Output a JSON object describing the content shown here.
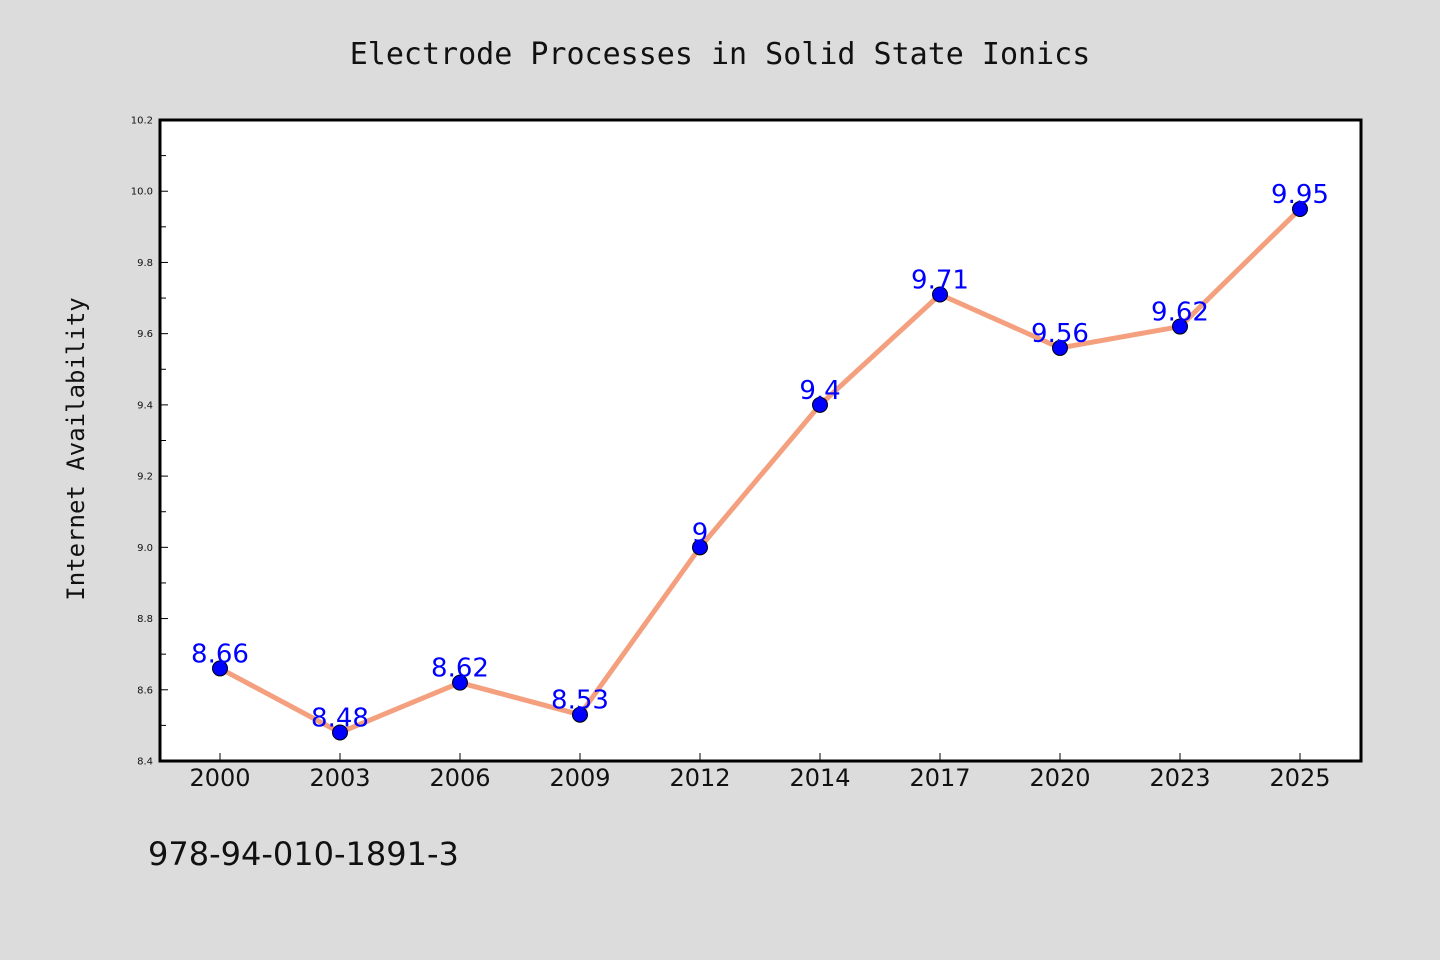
{
  "chart_data": {
    "type": "line",
    "title": "Electrode Processes in Solid State Ionics",
    "xlabel": "",
    "ylabel": "Internet Availability",
    "categories": [
      "2000",
      "2003",
      "2006",
      "2009",
      "2012",
      "2014",
      "2017",
      "2020",
      "2023",
      "2025"
    ],
    "series": [
      {
        "values": [
          8.66,
          8.48,
          8.62,
          8.53,
          9.0,
          9.4,
          9.71,
          9.56,
          9.62,
          9.95
        ],
        "labels": [
          "8.66",
          "8.48",
          "8.62",
          "8.53",
          "9",
          "9.4",
          "9.71",
          "9.56",
          "9.62",
          "9.95"
        ],
        "line_color": "#f4a07f",
        "marker_color": "#0000ff"
      }
    ],
    "ylim": [
      8.4,
      10.2
    ],
    "yticks": [
      "8.4",
      "8.6",
      "8.8",
      "9.0",
      "9.2",
      "9.4",
      "9.6",
      "9.8",
      "10.0",
      "10.2"
    ],
    "grid": false,
    "legend": "none"
  },
  "footer": {
    "isbn": "978-94-010-1891-3"
  }
}
